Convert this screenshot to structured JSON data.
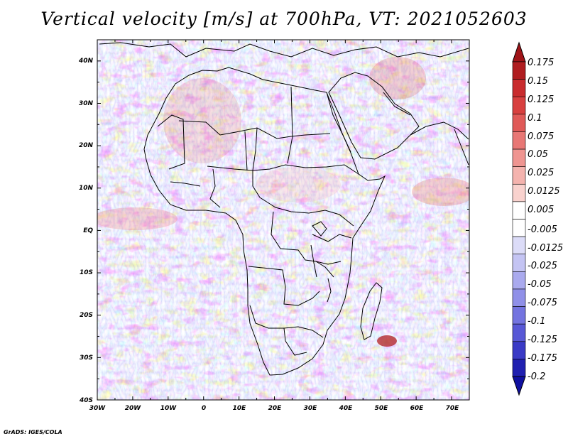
{
  "title": "Vertical velocity [m/s] at 700hPa, VT: 2021052603",
  "credit": "GrADS: IGES/COLA",
  "map": {
    "lon_range": [
      -30,
      75
    ],
    "lat_range": [
      -40,
      45
    ],
    "lon_ticks": [
      "30W",
      "20W",
      "10W",
      "0",
      "10E",
      "20E",
      "30E",
      "40E",
      "50E",
      "60E",
      "70E"
    ],
    "lat_ticks": [
      "40N",
      "30N",
      "20N",
      "10N",
      "EQ",
      "10S",
      "20S",
      "30S",
      "40S"
    ]
  },
  "colorbar": {
    "labels": [
      "0.175",
      "0.15",
      "0.125",
      "0.1",
      "0.075",
      "0.05",
      "0.025",
      "0.0125",
      "0.005",
      "-0.005",
      "-0.0125",
      "-0.025",
      "-0.05",
      "-0.075",
      "-0.1",
      "-0.125",
      "-0.175",
      "-0.2"
    ],
    "colors": [
      "#b01d20",
      "#c92c2e",
      "#d8403f",
      "#e05a58",
      "#e87775",
      "#ef9591",
      "#f4b3ae",
      "#f9d2ce",
      "#ffffff",
      "#ffffff",
      "#dcdcf8",
      "#c4c4f3",
      "#aaaaee",
      "#9090e8",
      "#7474e0",
      "#5858d6",
      "#3a3ac6",
      "#2020b0"
    ],
    "top_arrow_color": "#a01418",
    "bottom_arrow_color": "#1010a0"
  }
}
